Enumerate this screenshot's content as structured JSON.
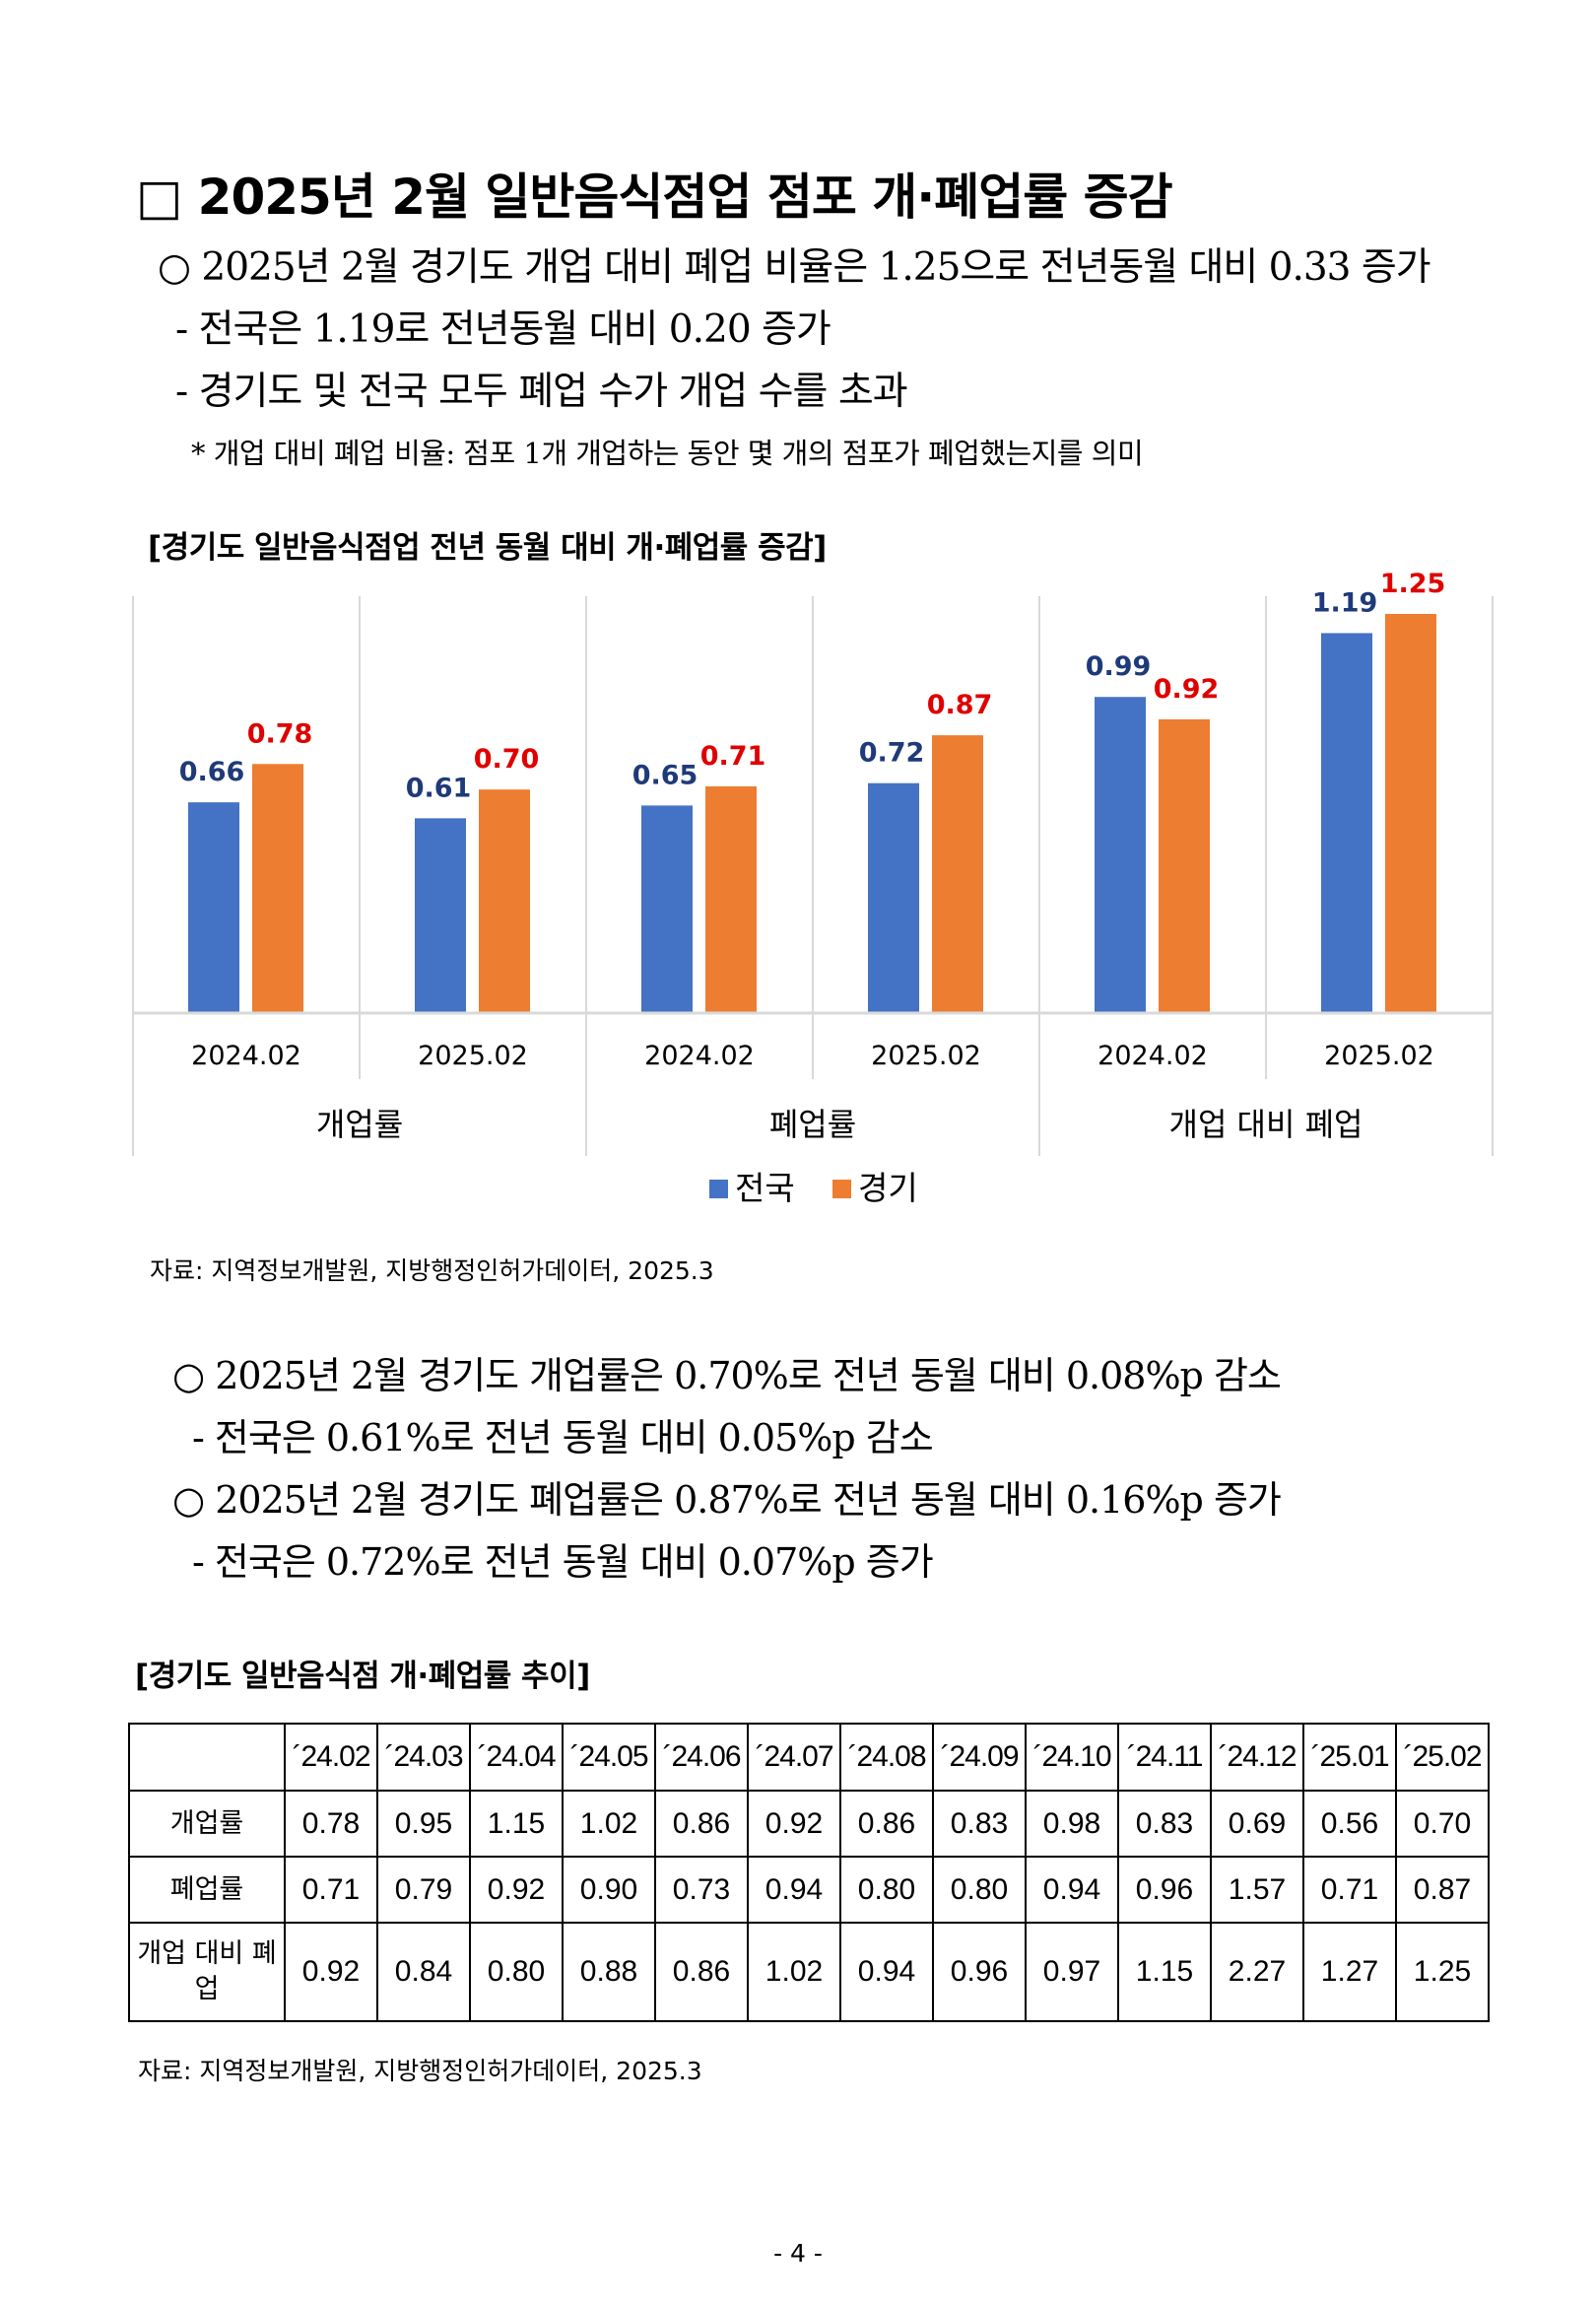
{
  "heading": "□ 2025년 2월 일반음식점업 점포 개·폐업률 증감",
  "summary": [
    "○ 2025년 2월 경기도 개업 대비 폐업 비율은 1.25으로 전년동월 대비 0.33 증가",
    "- 전국은  1.19로 전년동월 대비 0.20 증가",
    "- 경기도 및 전국 모두 폐업 수가 개업 수를 초과"
  ],
  "footnote": "* 개업 대비 폐업 비율: 점포 1개 개업하는 동안 몇 개의 점포가 폐업했는지를 의미",
  "chart_title": "[경기도 일반음식점업 전년 동월 대비 개·폐업률 증감]",
  "chart_data": {
    "type": "bar",
    "groups": [
      {
        "name": "개업률",
        "categories": [
          "2024.02",
          "2025.02"
        ]
      },
      {
        "name": "폐업률",
        "categories": [
          "2024.02",
          "2025.02"
        ]
      },
      {
        "name": "개업 대비 폐업",
        "categories": [
          "2024.02",
          "2025.02"
        ]
      }
    ],
    "series": [
      {
        "name": "전국",
        "color": "#4472C4",
        "label_color": "#1F3A7A",
        "values": [
          0.66,
          0.61,
          0.65,
          0.72,
          0.99,
          1.19
        ]
      },
      {
        "name": "경기",
        "color": "#ED7D31",
        "label_color": "#E00000",
        "values": [
          0.78,
          0.7,
          0.71,
          0.87,
          0.92,
          1.25
        ]
      }
    ],
    "ylim": [
      0,
      1.25
    ],
    "grid": false,
    "legend_position": "bottom"
  },
  "chart_source": "자료: 지역정보개발원, 지방행정인허가데이터, 2025.3",
  "detail": [
    "○ 2025년 2월 경기도 개업률은 0.70%로 전년 동월 대비 0.08%p 감소",
    "- 전국은  0.61%로 전년 동월 대비 0.05%p  감소",
    "○ 2025년 2월 경기도 폐업률은 0.87%로 전년 동월 대비 0.16%p 증가",
    "- 전국은  0.72%로 전년 동월 대비 0.07%p  증가"
  ],
  "table_title": "[경기도 일반음식점 개·폐업률 추이]",
  "table": {
    "columns": [
      "´24.02",
      "´24.03",
      "´24.04",
      "´24.05",
      "´24.06",
      "´24.07",
      "´24.08",
      "´24.09",
      "´24.10",
      "´24.11",
      "´24.12",
      "´25.01",
      "´25.02"
    ],
    "rows": [
      {
        "label": "개업률",
        "values": [
          "0.78",
          "0.95",
          "1.15",
          "1.02",
          "0.86",
          "0.92",
          "0.86",
          "0.83",
          "0.98",
          "0.83",
          "0.69",
          "0.56",
          "0.70"
        ]
      },
      {
        "label": "폐업률",
        "values": [
          "0.71",
          "0.79",
          "0.92",
          "0.90",
          "0.73",
          "0.94",
          "0.80",
          "0.80",
          "0.94",
          "0.96",
          "1.57",
          "0.71",
          "0.87"
        ]
      },
      {
        "label": "개업 대비 폐업",
        "values": [
          "0.92",
          "0.84",
          "0.80",
          "0.88",
          "0.86",
          "1.02",
          "0.94",
          "0.96",
          "0.97",
          "1.15",
          "2.27",
          "1.27",
          "1.25"
        ]
      }
    ]
  },
  "table_source": "자료: 지역정보개발원, 지방행정인허가데이터, 2025.3",
  "page_number": "- 4 -"
}
